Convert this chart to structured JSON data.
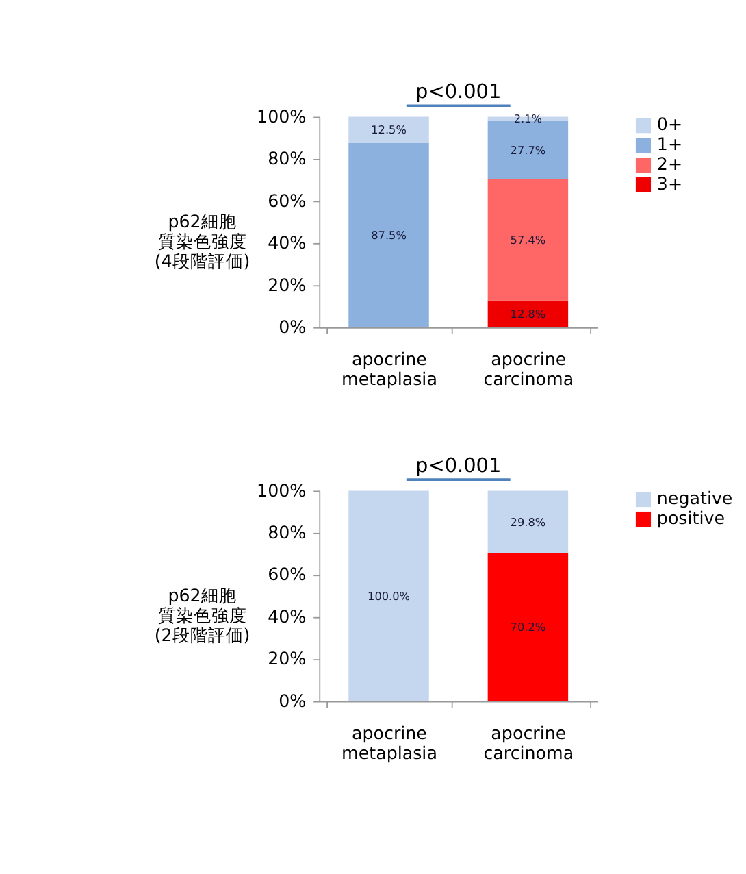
{
  "chart_data": [
    {
      "type": "bar",
      "stacked": true,
      "ylabel": "p62細胞質染色強度(4段階評価)",
      "annotations": [
        "p<0.001"
      ],
      "categories": [
        "apocrine metaplasia",
        "apocrine carcinoma"
      ],
      "ylim": [
        0,
        100
      ],
      "yticks": [
        {
          "value": 0,
          "label": "0%"
        },
        {
          "value": 20,
          "label": "20%"
        },
        {
          "value": 40,
          "label": "40%"
        },
        {
          "value": 60,
          "label": "60%"
        },
        {
          "value": 80,
          "label": "80%"
        },
        {
          "value": 100,
          "label": "100%"
        }
      ],
      "grid": false,
      "legend": "right",
      "series": [
        {
          "name": "3+",
          "color": "#ee0000",
          "values": [
            null,
            12.8
          ],
          "value_labels": [
            null,
            "12.8%"
          ]
        },
        {
          "name": "2+",
          "color": "#ff6666",
          "values": [
            null,
            57.4
          ],
          "value_labels": [
            null,
            "57.4%"
          ]
        },
        {
          "name": "1+",
          "color": "#8cb1de",
          "values": [
            87.5,
            27.7
          ],
          "value_labels": [
            "87.5%",
            "27.7%"
          ]
        },
        {
          "name": "0+",
          "color": "#c5d7ee",
          "values": [
            12.5,
            2.1
          ],
          "value_labels": [
            "12.5%",
            "2.1%"
          ]
        }
      ]
    },
    {
      "type": "bar",
      "stacked": true,
      "ylabel": "p62細胞質染色強度(2段階評価)",
      "annotations": [
        "p<0.001"
      ],
      "categories": [
        "apocrine metaplasia",
        "apocrine carcinoma"
      ],
      "ylim": [
        0,
        100
      ],
      "yticks": [
        {
          "value": 0,
          "label": "0%"
        },
        {
          "value": 20,
          "label": "20%"
        },
        {
          "value": 40,
          "label": "40%"
        },
        {
          "value": 60,
          "label": "60%"
        },
        {
          "value": 80,
          "label": "80%"
        },
        {
          "value": 100,
          "label": "100%"
        }
      ],
      "grid": false,
      "legend": "right",
      "series": [
        {
          "name": "positive",
          "color": "#ff0000",
          "values": [
            null,
            70.2
          ],
          "value_labels": [
            null,
            "70.2%"
          ]
        },
        {
          "name": "negative",
          "color": "#c5d7ee",
          "values": [
            100.0,
            29.8
          ],
          "value_labels": [
            "100.0%",
            "29.8%"
          ]
        }
      ]
    }
  ]
}
